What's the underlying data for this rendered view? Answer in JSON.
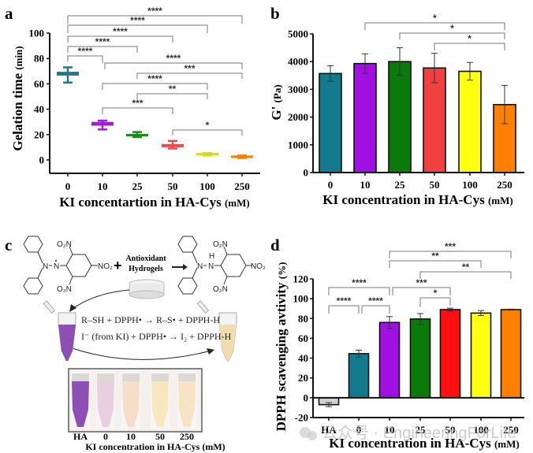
{
  "chart_data": [
    {
      "panel": "a",
      "type": "box",
      "title": "",
      "xlabel": "KI concentartion in HA-Cys",
      "xlabel_unit": "(mM)",
      "ylabel": "Gelation time",
      "ylabel_unit": "(min)",
      "ylim": [
        -10,
        100
      ],
      "yticks": [
        0,
        20,
        40,
        60,
        80,
        100
      ],
      "categories": [
        "0",
        "10",
        "25",
        "50",
        "100",
        "250"
      ],
      "colors": [
        "#1a7a8c",
        "#a020d8",
        "#1e8a1e",
        "#f04848",
        "#d8d820",
        "#ff8000"
      ],
      "boxes": [
        {
          "median": 68,
          "q1": 66.5,
          "q3": 69.5,
          "min": 61,
          "max": 73
        },
        {
          "median": 28.5,
          "q1": 27,
          "q3": 30,
          "min": 24,
          "max": 31
        },
        {
          "median": 19.5,
          "q1": 18.5,
          "q3": 20.5,
          "min": 18,
          "max": 22
        },
        {
          "median": 11.5,
          "q1": 10,
          "q3": 12.5,
          "min": 9,
          "max": 15
        },
        {
          "median": 4.5,
          "q1": 3.5,
          "q3": 5.5,
          "min": 3.5,
          "max": 5.5
        },
        {
          "median": 2.5,
          "q1": 1.5,
          "q3": 3.5,
          "min": 1.5,
          "max": 3.5
        }
      ],
      "significance": [
        {
          "from": 0,
          "to": 5,
          "label": "****"
        },
        {
          "from": 0,
          "to": 4,
          "label": "****"
        },
        {
          "from": 0,
          "to": 3,
          "label": "****"
        },
        {
          "from": 0,
          "to": 2,
          "label": "****"
        },
        {
          "from": 0,
          "to": 1,
          "label": "****"
        },
        {
          "from": 1,
          "to": 5,
          "label": "****"
        },
        {
          "from": 2,
          "to": 5,
          "label": "***"
        },
        {
          "from": 1,
          "to": 4,
          "label": "****"
        },
        {
          "from": 2,
          "to": 4,
          "label": "**"
        },
        {
          "from": 1,
          "to": 3,
          "label": "***"
        },
        {
          "from": 3,
          "to": 5,
          "label": "*"
        }
      ]
    },
    {
      "panel": "b",
      "type": "bar",
      "title": "",
      "xlabel": "KI concentration in HA-Cys",
      "xlabel_unit": "(mM)",
      "ylabel": "G'",
      "ylabel_unit": "(Pa)",
      "ylim": [
        0,
        5000
      ],
      "yticks": [
        0,
        1000,
        2000,
        3000,
        4000,
        5000
      ],
      "categories": [
        "0",
        "10",
        "25",
        "50",
        "100",
        "250"
      ],
      "colors": [
        "#147a8e",
        "#a010e0",
        "#0a7a0a",
        "#f04040",
        "#ffff10",
        "#ff8000"
      ],
      "values": [
        3570,
        3930,
        4000,
        3770,
        3650,
        2450
      ],
      "errors": [
        280,
        350,
        500,
        530,
        320,
        690
      ],
      "significance": [
        {
          "from": 1,
          "to": 5,
          "label": "*"
        },
        {
          "from": 2,
          "to": 5,
          "label": "*"
        },
        {
          "from": 3,
          "to": 5,
          "label": "*"
        }
      ]
    },
    {
      "panel": "d",
      "type": "bar",
      "title": "",
      "xlabel": "KI concentration in HA-Cys",
      "xlabel_unit": "(mM)",
      "ylabel": "DPPH scavenging avtivity",
      "ylabel_unit": "(%)",
      "ylim": [
        -20,
        120
      ],
      "yticks": [
        -20,
        0,
        20,
        40,
        60,
        80,
        100,
        120
      ],
      "categories": [
        "HA",
        "0",
        "10",
        "25",
        "50",
        "100",
        "250"
      ],
      "colors": [
        "#d0d0d0",
        "#147a8e",
        "#a010e0",
        "#0a7a0a",
        "#ff1010",
        "#ffff10",
        "#ff8000"
      ],
      "values": [
        -7,
        44.5,
        76,
        79.5,
        89,
        85.5,
        89
      ],
      "errors": [
        2,
        3.5,
        6,
        5.5,
        1.5,
        2.5,
        0.5
      ],
      "significance": [
        {
          "from": 2,
          "to": 6,
          "label": "***"
        },
        {
          "from": 2,
          "to": 5,
          "label": "**"
        },
        {
          "from": 3,
          "to": 6,
          "label": "**"
        },
        {
          "from": 0,
          "to": 2,
          "label": "****"
        },
        {
          "from": 2,
          "to": 4,
          "label": "***"
        },
        {
          "from": 0,
          "to": 1,
          "label": "****"
        },
        {
          "from": 1,
          "to": 2,
          "label": "****"
        },
        {
          "from": 3,
          "to": 4,
          "label": "*"
        }
      ]
    }
  ],
  "panels": {
    "a": {
      "letter": "a"
    },
    "b": {
      "letter": "b"
    },
    "c": {
      "letter": "c",
      "reagent_top": "Antioxidant",
      "reagent_bottom": "Hydrogels",
      "plus": "+",
      "labels": {
        "o2n": "O₂N",
        "no2": "NO₂",
        "n": "N",
        "n_radical": "Ṅ",
        "nh_h": "H"
      },
      "reaction_1": "R–SH + DPPH• → R–S• + DPPH-H",
      "reaction_2": "I⁻ (from KI) + DPPH• → I₂ + DPPH-H",
      "photo_labels": [
        "HA",
        "0",
        "10",
        "50",
        "250"
      ],
      "photo_xlabel": "KI concentration in HA-Cys (mM)",
      "tube_colors": [
        "#8e4fb5",
        "#e8cfe0",
        "#f5ddc8",
        "#f8e6bf",
        "#f6e4c4"
      ]
    },
    "d": {
      "letter": "d"
    }
  },
  "watermark": "公众号 · EngineeringForLife"
}
